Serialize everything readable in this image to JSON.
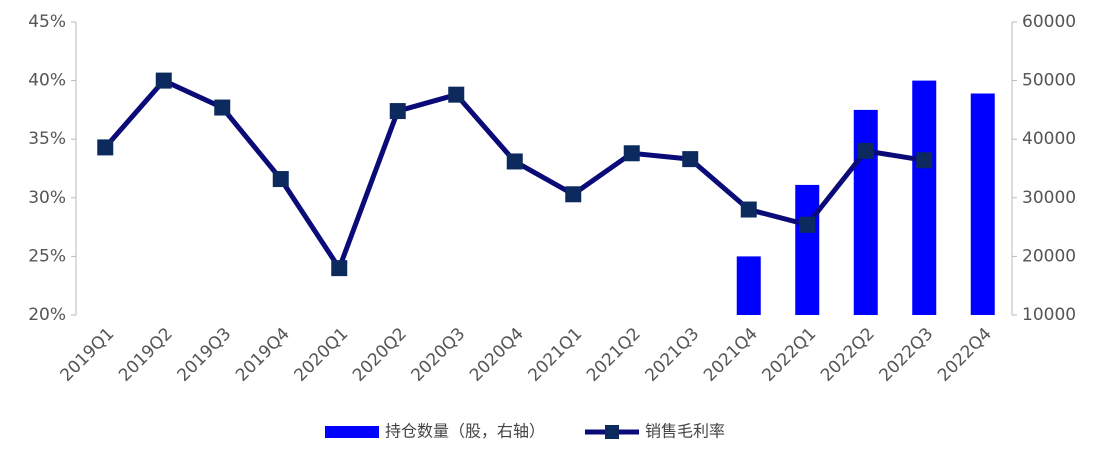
{
  "chart_data": {
    "type": "bar-line",
    "categories": [
      "2019Q1",
      "2019Q2",
      "2019Q3",
      "2019Q4",
      "2020Q1",
      "2020Q2",
      "2020Q3",
      "2020Q4",
      "2021Q1",
      "2021Q2",
      "2021Q3",
      "2021Q4",
      "2022Q1",
      "2022Q2",
      "2022Q3",
      "2022Q4"
    ],
    "series": [
      {
        "name": "持仓数量（股，右轴）",
        "type": "bar",
        "axis": "y2",
        "color": "#0000ff",
        "values": [
          null,
          null,
          null,
          null,
          null,
          null,
          null,
          null,
          null,
          null,
          null,
          20000,
          32200,
          45000,
          50000,
          47800
        ]
      },
      {
        "name": "销售毛利率",
        "type": "line",
        "color": "#0a0a78",
        "values": [
          34.3,
          40.0,
          37.7,
          31.6,
          24.0,
          37.4,
          38.8,
          33.1,
          30.3,
          33.8,
          33.3,
          29.0,
          27.7,
          34.0,
          33.2,
          null
        ]
      }
    ],
    "ylim": [
      20,
      45
    ],
    "yticks": [
      {
        "value": 20,
        "label": "20%"
      },
      {
        "value": 25,
        "label": "25%"
      },
      {
        "value": 30,
        "label": "30%"
      },
      {
        "value": 35,
        "label": "35%"
      },
      {
        "value": 40,
        "label": "40%"
      },
      {
        "value": 45,
        "label": "45%"
      }
    ],
    "y2lim": [
      10000,
      60000
    ],
    "y2ticks": [
      10000,
      20000,
      30000,
      40000,
      50000,
      60000
    ],
    "grid": false,
    "legend": "bottom"
  }
}
